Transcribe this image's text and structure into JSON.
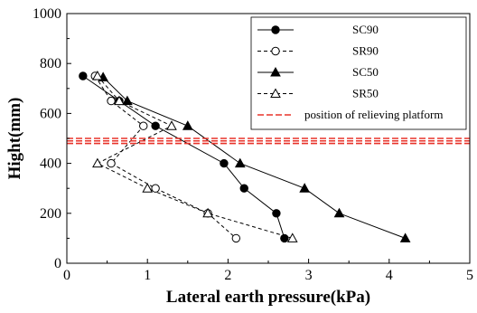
{
  "chart_data": {
    "type": "line",
    "title": "",
    "xlabel": "Lateral earth pressure(kPa)",
    "ylabel": "Hight(mm)",
    "xlim": [
      0,
      5
    ],
    "ylim": [
      0,
      1000
    ],
    "x_ticks": [
      "0",
      "1",
      "2",
      "3",
      "4",
      "5"
    ],
    "y_ticks": [
      "0",
      "200",
      "400",
      "600",
      "800",
      "1000"
    ],
    "grid": false,
    "legend_position": "top-right",
    "series": [
      {
        "name": "SC90",
        "marker": "filled-circle",
        "line": "solid",
        "points": [
          [
            0.2,
            750
          ],
          [
            0.65,
            650
          ],
          [
            1.1,
            550
          ],
          [
            1.95,
            400
          ],
          [
            2.2,
            300
          ],
          [
            2.6,
            200
          ],
          [
            2.7,
            100
          ]
        ]
      },
      {
        "name": "SR90",
        "marker": "open-circle",
        "line": "dashed",
        "points": [
          [
            0.35,
            750
          ],
          [
            0.55,
            650
          ],
          [
            0.95,
            550
          ],
          [
            0.55,
            400
          ],
          [
            1.1,
            300
          ],
          [
            1.75,
            200
          ],
          [
            2.1,
            100
          ]
        ]
      },
      {
        "name": "SC50",
        "marker": "filled-triangle",
        "line": "solid",
        "points": [
          [
            0.45,
            745
          ],
          [
            0.75,
            650
          ],
          [
            1.5,
            550
          ],
          [
            2.15,
            400
          ],
          [
            2.95,
            300
          ],
          [
            3.38,
            200
          ],
          [
            4.2,
            100
          ]
        ]
      },
      {
        "name": "SR50",
        "marker": "open-triangle",
        "line": "dashed",
        "points": [
          [
            0.38,
            750
          ],
          [
            0.65,
            650
          ],
          [
            1.3,
            550
          ],
          [
            0.38,
            400
          ],
          [
            1.0,
            300
          ],
          [
            1.75,
            200
          ],
          [
            2.8,
            100
          ]
        ]
      }
    ],
    "reference_lines": [
      {
        "name": "position of relieving platform",
        "orientation": "horizontal",
        "y_values": [
          480,
          490,
          500
        ],
        "color": "#e8332a",
        "line": "dashed"
      }
    ]
  }
}
